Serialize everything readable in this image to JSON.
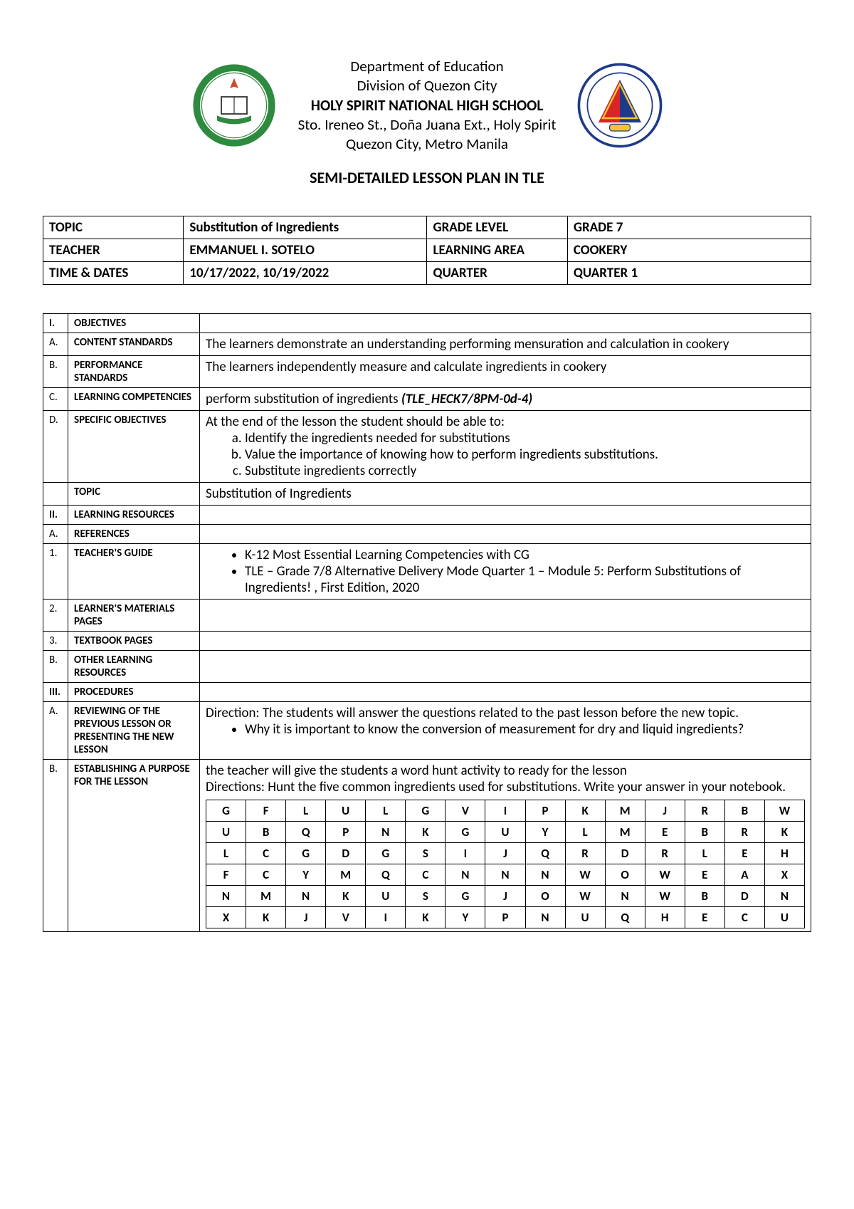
{
  "header": {
    "line1": "Department of Education",
    "line2": "Division of Quezon City",
    "school": "HOLY SPIRIT NATIONAL HIGH SCHOOL",
    "line4": "Sto. Ireneo St., Doña Juana Ext., Holy Spirit",
    "line5": "Quezon City, Metro Manila"
  },
  "plan_title": "SEMI-DETAILED LESSON PLAN IN TLE",
  "info": {
    "topic_lbl": "TOPIC",
    "topic_val": "Substitution of Ingredients",
    "grade_lbl": "GRADE LEVEL",
    "grade_val": "GRADE 7",
    "teacher_lbl": "TEACHER",
    "teacher_val": "EMMANUEL I. SOTELO",
    "area_lbl": "LEARNING AREA",
    "area_val": "COOKERY",
    "dates_lbl": "TIME & DATES",
    "dates_val": "10/17/2022, 10/19/2022",
    "quarter_lbl": "QUARTER",
    "quarter_val": "QUARTER 1"
  },
  "sections": {
    "I": "I.",
    "I_lbl": "OBJECTIVES",
    "A": "A.",
    "A_lbl": "CONTENT STANDARDS",
    "A_val": "The learners demonstrate an understanding performing mensuration and calculation in cookery",
    "B": "B.",
    "B_lbl": "PERFORMANCE STANDARDS",
    "B_val": "The learners independently measure and calculate ingredients in cookery",
    "C": "C.",
    "C_lbl": "LEARNING COMPETENCIES",
    "C_val_pre": "perform substitution of ingredients ",
    "C_val_code": "(TLE_HECK7/8PM-0d-4)",
    "D": "D.",
    "D_lbl": "SPECIFIC OBJECTIVES",
    "D_intro": "At the end of the lesson the student should be able to:",
    "D_a": "Identify the ingredients needed for substitutions",
    "D_b": "Value the importance of knowing how to perform ingredients substitutions.",
    "D_c": "Substitute ingredients correctly",
    "topic_lbl2": "TOPIC",
    "topic_val2": "Substitution of Ingredients",
    "II": "II.",
    "II_lbl": "LEARNING RESOURCES",
    "RA": "A.",
    "RA_lbl": "REFERENCES",
    "R1": "1.",
    "R1_lbl": "TEACHER'S GUIDE",
    "R1_b1": "K-12 Most Essential Learning Competencies with CG",
    "R1_b2": "TLE – Grade 7/8 Alternative Delivery Mode Quarter 1 – Module 5: Perform Substitutions of Ingredients! , First Edition, 2020",
    "R2": "2.",
    "R2_lbl": "LEARNER'S MATERIALS PAGES",
    "R3": "3.",
    "R3_lbl": "TEXTBOOK PAGES",
    "RB": "B.",
    "RB_lbl": "OTHER LEARNING RESOURCES",
    "III": "III.",
    "III_lbl": "PROCEDURES",
    "PA": "A.",
    "PA_lbl": "REVIEWING OF THE PREVIOUS LESSON OR PRESENTING THE NEW LESSON",
    "PA_text": "Direction: The students will answer the questions related to the past lesson before the new topic.",
    "PA_bullet": "Why it is important to know the conversion of measurement for dry and liquid ingredients?",
    "PB": "B.",
    "PB_lbl": "ESTABLISHING A PURPOSE FOR THE LESSON",
    "PB_text1": "the teacher will give the students a word hunt activity to ready for the lesson",
    "PB_text2": "Directions: Hunt the five common ingredients used for substitutions. Write your answer in your notebook."
  },
  "word_grid": [
    [
      "G",
      "F",
      "L",
      "U",
      "L",
      "G",
      "V",
      "I",
      "P",
      "K",
      "M",
      "J",
      "R",
      "B",
      "W"
    ],
    [
      "U",
      "B",
      "Q",
      "P",
      "N",
      "K",
      "G",
      "U",
      "Y",
      "L",
      "M",
      "E",
      "B",
      "R",
      "K"
    ],
    [
      "L",
      "C",
      "G",
      "D",
      "G",
      "S",
      "I",
      "J",
      "Q",
      "R",
      "D",
      "R",
      "L",
      "E",
      "H"
    ],
    [
      "F",
      "C",
      "Y",
      "M",
      "Q",
      "C",
      "N",
      "N",
      "N",
      "W",
      "O",
      "W",
      "E",
      "A",
      "X"
    ],
    [
      "N",
      "M",
      "N",
      "K",
      "U",
      "S",
      "G",
      "J",
      "O",
      "W",
      "N",
      "W",
      "B",
      "D",
      "N"
    ],
    [
      "X",
      "K",
      "J",
      "V",
      "I",
      "K",
      "Y",
      "P",
      "N",
      "U",
      "Q",
      "H",
      "E",
      "C",
      "U"
    ]
  ],
  "colors": {
    "logo1_outer": "#2d8a3f",
    "logo1_inner": "#ffffff",
    "logo2_blue": "#1e3a8a",
    "logo2_red": "#d92525",
    "logo2_yellow": "#f4c430"
  }
}
